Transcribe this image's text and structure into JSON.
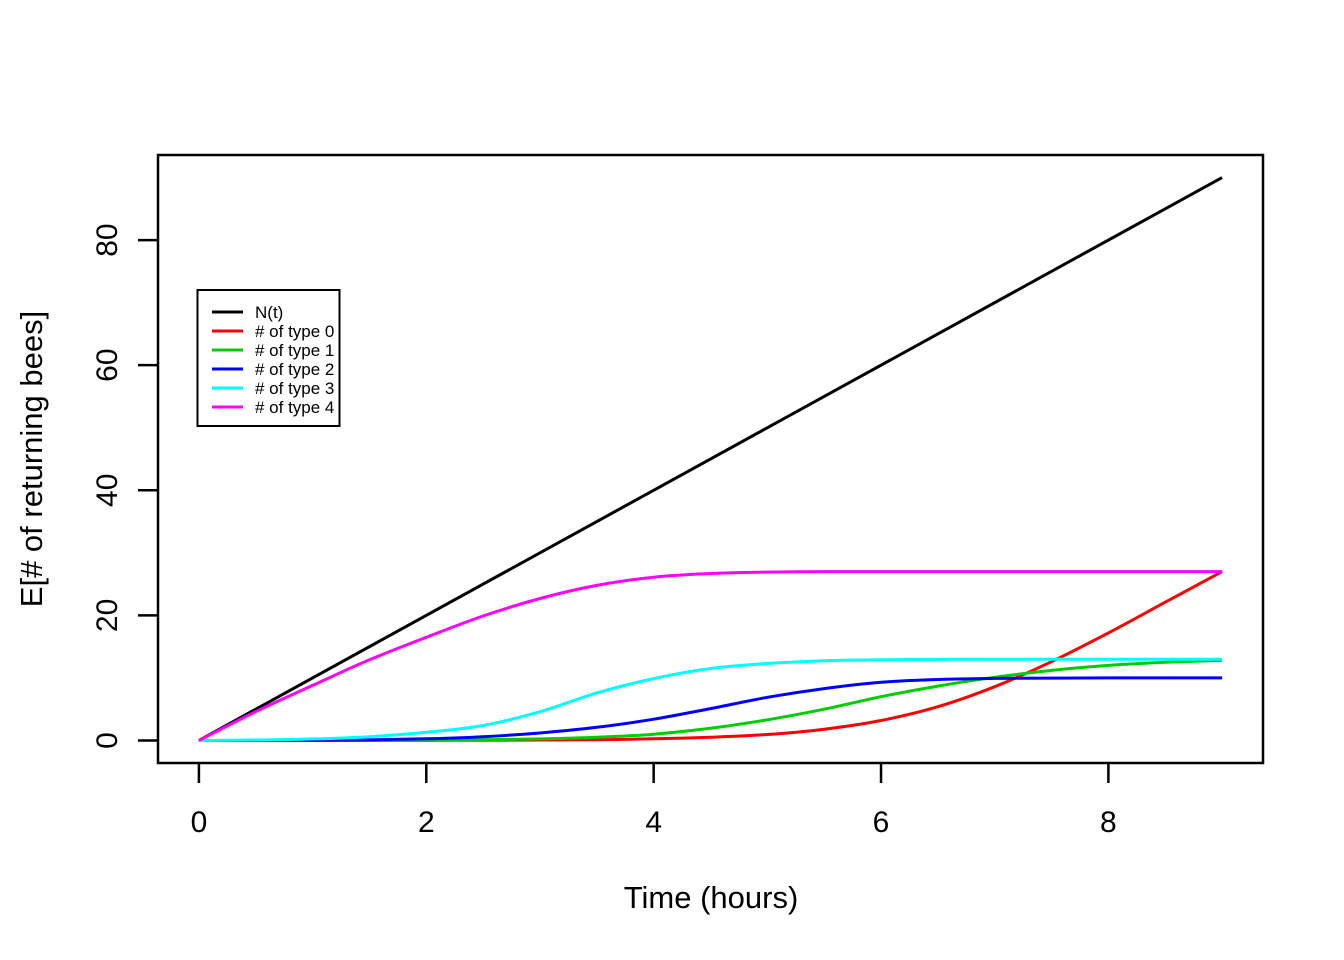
{
  "figure": {
    "background_color": "#FFFFFF",
    "axis_color": "#000000"
  },
  "chart_data": {
    "type": "line",
    "title": "",
    "xlabel": "Time (hours)",
    "ylabel": "E[# of returning bees]",
    "xlim": [
      0,
      9
    ],
    "ylim": [
      0,
      90
    ],
    "x_ticks": [
      "0",
      "2",
      "4",
      "6",
      "8"
    ],
    "x_tick_values": [
      0,
      2,
      4,
      6,
      8
    ],
    "y_ticks": [
      "0",
      "20",
      "40",
      "60",
      "80"
    ],
    "y_tick_values": [
      0,
      20,
      40,
      60,
      80
    ],
    "grid": false,
    "legend_position": "upper-left-inside",
    "legend_entries": [
      "N(t)",
      "# of type 0",
      "# of type 1",
      "# of type 2",
      "# of type 3",
      "# of type 4"
    ],
    "series": [
      {
        "name": "N(t)",
        "color": "#000000",
        "points": [
          [
            0,
            0
          ],
          [
            9,
            90
          ]
        ]
      },
      {
        "name": "# of type 0",
        "color": "#FF0000",
        "points": [
          [
            0,
            0
          ],
          [
            0.5,
            0
          ],
          [
            1,
            0.01
          ],
          [
            1.5,
            0.01
          ],
          [
            2,
            0.02
          ],
          [
            2.5,
            0.04
          ],
          [
            3,
            0.07
          ],
          [
            3.5,
            0.13
          ],
          [
            4,
            0.27
          ],
          [
            4.5,
            0.52
          ],
          [
            5,
            0.95
          ],
          [
            5.5,
            1.8
          ],
          [
            6,
            3.2
          ],
          [
            6.5,
            5.4
          ],
          [
            7,
            8.6
          ],
          [
            7.5,
            12.6
          ],
          [
            8,
            17.2
          ],
          [
            8.5,
            22.1
          ],
          [
            9,
            27
          ]
        ]
      },
      {
        "name": "# of type 1",
        "color": "#00CD00",
        "points": [
          [
            0,
            0
          ],
          [
            0.5,
            0
          ],
          [
            1,
            0.01
          ],
          [
            1.5,
            0.03
          ],
          [
            2,
            0.06
          ],
          [
            2.5,
            0.13
          ],
          [
            3,
            0.26
          ],
          [
            3.5,
            0.52
          ],
          [
            4,
            1.0
          ],
          [
            4.5,
            1.95
          ],
          [
            5,
            3.3
          ],
          [
            5.5,
            5.0
          ],
          [
            6,
            7.0
          ],
          [
            6.5,
            8.7
          ],
          [
            7,
            10.1
          ],
          [
            7.5,
            11.2
          ],
          [
            8,
            12.0
          ],
          [
            8.5,
            12.5
          ],
          [
            9,
            12.8
          ]
        ]
      },
      {
        "name": "# of type 2",
        "color": "#0000FF",
        "points": [
          [
            0,
            0
          ],
          [
            0.5,
            0.01
          ],
          [
            1,
            0.04
          ],
          [
            1.5,
            0.1
          ],
          [
            2,
            0.27
          ],
          [
            2.5,
            0.6
          ],
          [
            3,
            1.2
          ],
          [
            3.5,
            2.1
          ],
          [
            4,
            3.4
          ],
          [
            4.5,
            5.1
          ],
          [
            5,
            6.9
          ],
          [
            5.5,
            8.3
          ],
          [
            6,
            9.3
          ],
          [
            6.5,
            9.75
          ],
          [
            7,
            9.92
          ],
          [
            7.5,
            9.98
          ],
          [
            8,
            10
          ],
          [
            8.5,
            10
          ],
          [
            9,
            10
          ]
        ]
      },
      {
        "name": "# of type 3",
        "color": "#00FFFF",
        "points": [
          [
            0,
            0
          ],
          [
            0.5,
            0.08
          ],
          [
            1,
            0.25
          ],
          [
            1.5,
            0.6
          ],
          [
            2,
            1.3
          ],
          [
            2.5,
            2.4
          ],
          [
            3,
            4.6
          ],
          [
            3.5,
            7.6
          ],
          [
            4,
            9.9
          ],
          [
            4.5,
            11.5
          ],
          [
            5,
            12.3
          ],
          [
            5.5,
            12.75
          ],
          [
            6,
            12.9
          ],
          [
            6.5,
            12.97
          ],
          [
            7,
            13
          ],
          [
            7.5,
            13
          ],
          [
            8,
            13
          ],
          [
            8.5,
            13
          ],
          [
            9,
            13
          ]
        ]
      },
      {
        "name": "# of type 4",
        "color": "#FF00FF",
        "points": [
          [
            0,
            0
          ],
          [
            0.5,
            4.6
          ],
          [
            1,
            8.8
          ],
          [
            1.5,
            12.9
          ],
          [
            2,
            16.5
          ],
          [
            2.5,
            19.9
          ],
          [
            3,
            22.7
          ],
          [
            3.5,
            24.8
          ],
          [
            4,
            26.1
          ],
          [
            4.5,
            26.7
          ],
          [
            5,
            26.92
          ],
          [
            5.5,
            27
          ],
          [
            6,
            27
          ],
          [
            6.5,
            27
          ],
          [
            7,
            27
          ],
          [
            7.5,
            27
          ],
          [
            8,
            27
          ],
          [
            8.5,
            27
          ],
          [
            9,
            27
          ]
        ]
      }
    ]
  }
}
